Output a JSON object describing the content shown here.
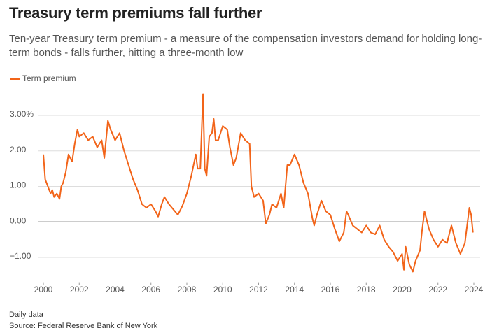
{
  "chart_data": {
    "type": "line",
    "title": "Treasury term premiums fall further",
    "subtitle": "Ten-year Treasury term premium - a measure of the compensation investors demand for holding long-term bonds - falls further, hitting a three-month low",
    "note": "Daily data",
    "source": "Source: Federal Reserve Bank of New York",
    "x": [
      2000.0,
      2000.1,
      2000.25,
      2000.4,
      2000.5,
      2000.6,
      2000.75,
      2000.9,
      2001.0,
      2001.1,
      2001.25,
      2001.4,
      2001.5,
      2001.6,
      2001.75,
      2001.9,
      2002.0,
      2002.25,
      2002.5,
      2002.75,
      2003.0,
      2003.25,
      2003.4,
      2003.6,
      2003.75,
      2004.0,
      2004.25,
      2004.5,
      2004.75,
      2005.0,
      2005.25,
      2005.5,
      2005.75,
      2006.0,
      2006.25,
      2006.4,
      2006.6,
      2006.75,
      2007.0,
      2007.25,
      2007.5,
      2007.75,
      2008.0,
      2008.25,
      2008.5,
      2008.6,
      2008.75,
      2008.9,
      2009.0,
      2009.1,
      2009.25,
      2009.4,
      2009.5,
      2009.6,
      2009.75,
      2010.0,
      2010.25,
      2010.4,
      2010.6,
      2010.75,
      2011.0,
      2011.25,
      2011.5,
      2011.6,
      2011.75,
      2012.0,
      2012.25,
      2012.4,
      2012.6,
      2012.75,
      2013.0,
      2013.25,
      2013.4,
      2013.6,
      2013.75,
      2014.0,
      2014.25,
      2014.5,
      2014.75,
      2015.0,
      2015.1,
      2015.25,
      2015.5,
      2015.75,
      2016.0,
      2016.25,
      2016.5,
      2016.75,
      2016.9,
      2017.0,
      2017.25,
      2017.5,
      2017.75,
      2018.0,
      2018.25,
      2018.5,
      2018.75,
      2019.0,
      2019.25,
      2019.5,
      2019.75,
      2020.0,
      2020.1,
      2020.2,
      2020.4,
      2020.6,
      2020.75,
      2021.0,
      2021.1,
      2021.25,
      2021.5,
      2021.75,
      2022.0,
      2022.25,
      2022.5,
      2022.75,
      2023.0,
      2023.25,
      2023.5,
      2023.75,
      2023.85,
      2023.95
    ],
    "series": [
      {
        "name": "Term premium",
        "color": "#f26419",
        "values": [
          1.9,
          1.2,
          1.0,
          0.8,
          0.9,
          0.7,
          0.8,
          0.65,
          1.0,
          1.1,
          1.4,
          1.9,
          1.8,
          1.7,
          2.2,
          2.6,
          2.4,
          2.5,
          2.3,
          2.4,
          2.1,
          2.3,
          1.8,
          2.85,
          2.6,
          2.3,
          2.5,
          2.0,
          1.6,
          1.2,
          0.9,
          0.5,
          0.4,
          0.5,
          0.3,
          0.15,
          0.5,
          0.7,
          0.5,
          0.35,
          0.2,
          0.45,
          0.8,
          1.3,
          1.9,
          1.5,
          1.5,
          3.6,
          1.5,
          1.3,
          2.4,
          2.5,
          2.9,
          2.3,
          2.3,
          2.7,
          2.6,
          2.1,
          1.6,
          1.8,
          2.5,
          2.3,
          2.2,
          1.0,
          0.7,
          0.8,
          0.6,
          -0.05,
          0.2,
          0.5,
          0.4,
          0.8,
          0.4,
          1.6,
          1.6,
          1.9,
          1.6,
          1.1,
          0.8,
          0.1,
          -0.1,
          0.2,
          0.6,
          0.3,
          0.2,
          -0.2,
          -0.55,
          -0.3,
          0.3,
          0.2,
          -0.1,
          -0.2,
          -0.3,
          -0.1,
          -0.3,
          -0.35,
          -0.1,
          -0.5,
          -0.7,
          -0.85,
          -1.1,
          -0.9,
          -1.35,
          -0.7,
          -1.2,
          -1.4,
          -1.1,
          -0.8,
          -0.3,
          0.3,
          -0.2,
          -0.5,
          -0.7,
          -0.5,
          -0.6,
          -0.1,
          -0.6,
          -0.9,
          -0.6,
          0.4,
          0.2,
          -0.3
        ]
      }
    ],
    "xlim": [
      2000,
      2024
    ],
    "xticks": [
      2000,
      2002,
      2004,
      2006,
      2008,
      2010,
      2012,
      2014,
      2016,
      2018,
      2020,
      2022,
      2024
    ],
    "ylim": [
      -1.7,
      3.7
    ],
    "yticks": [
      {
        "value": -1,
        "label": "−1.00"
      },
      {
        "value": 0,
        "label": "0.00"
      },
      {
        "value": 1,
        "label": "1.00"
      },
      {
        "value": 2,
        "label": "2.00"
      },
      {
        "value": 3,
        "label": "3.00%"
      }
    ],
    "grid": true
  }
}
